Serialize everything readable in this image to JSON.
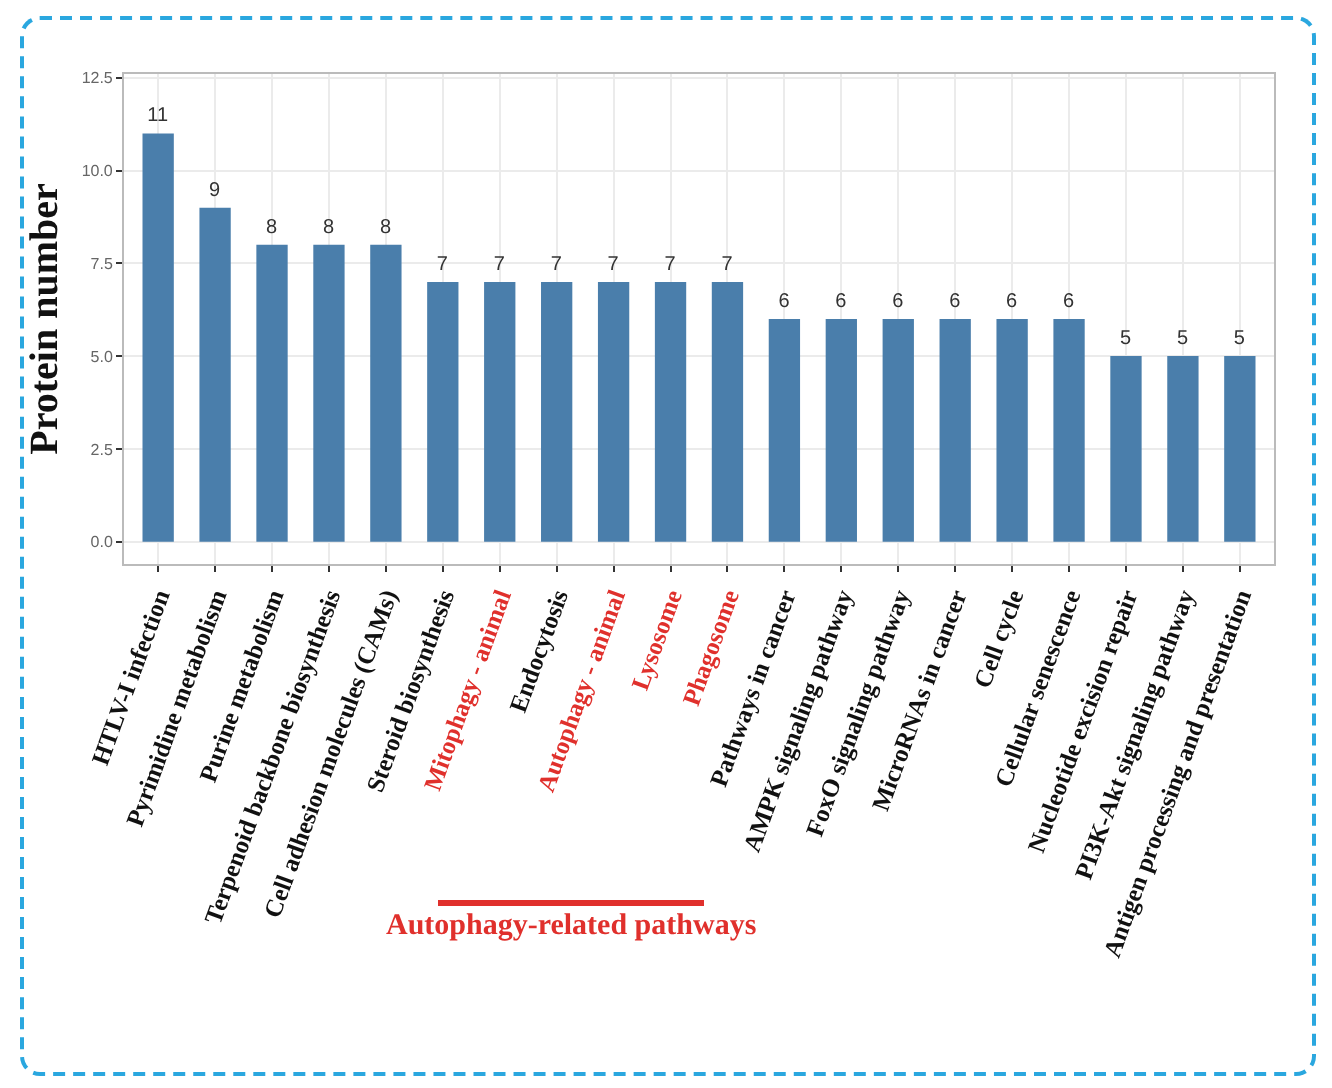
{
  "chart_data": {
    "type": "bar",
    "ylabel": "Protein number",
    "categories": [
      "HTLV-I infection",
      "Pyrimidine metabolism",
      "Purine metabolism",
      "Terpenoid backbone biosynthesis",
      "Cell adhesion molecules (CAMs)",
      "Steroid biosynthesis",
      "Mitophagy - animal",
      "Endocytosis",
      "Autophagy - animal",
      "Lysosome",
      "Phagosome",
      "Pathways in cancer",
      "AMPK signaling pathway",
      "FoxO signaling pathway",
      "MicroRNAs in cancer",
      "Cell cycle",
      "Cellular senescence",
      "Nucleotide excision repair",
      "PI3K-Akt signaling pathway",
      "Antigen processing and presentation"
    ],
    "values": [
      11,
      9,
      8,
      8,
      8,
      7,
      7,
      7,
      7,
      7,
      7,
      6,
      6,
      6,
      6,
      6,
      6,
      5,
      5,
      5
    ],
    "color": "#4a7eab",
    "data_labels": true,
    "grid": true,
    "ylim": [
      -0.6,
      12.6
    ],
    "yticks": [
      {
        "value": 0,
        "label": "0.0"
      },
      {
        "value": 2.5,
        "label": "2.5"
      },
      {
        "value": 5,
        "label": "5.0"
      },
      {
        "value": 7.5,
        "label": "7.5"
      },
      {
        "value": 10,
        "label": "10.0"
      },
      {
        "value": 12.5,
        "label": "12.5"
      }
    ],
    "annotations": [
      "Autophagy-related pathways"
    ]
  }
}
